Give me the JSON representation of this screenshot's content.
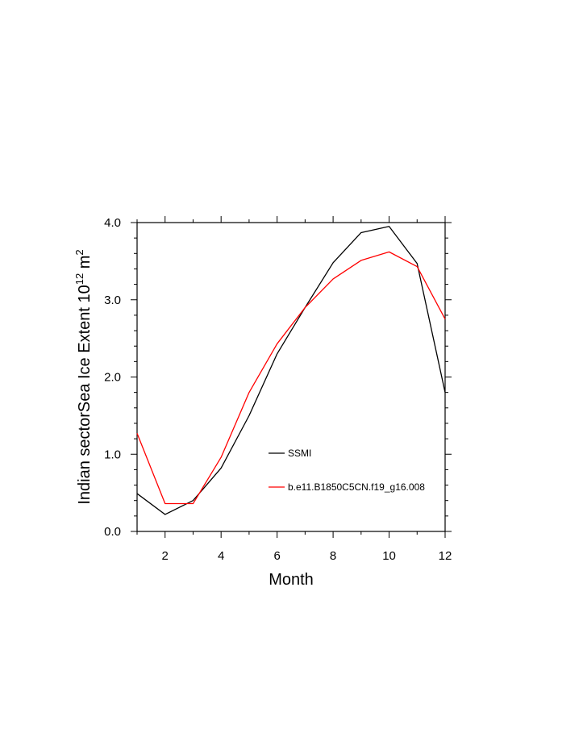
{
  "chart_data": {
    "type": "line",
    "xlabel": "Month",
    "ylabel_main": "Indian sectorSea Ice Extent 10",
    "ylabel_exp": "12",
    "ylabel_unit": " m",
    "ylabel_unit_exp": "2",
    "xlim": [
      1,
      12
    ],
    "ylim": [
      0,
      4
    ],
    "x_ticks": [
      2,
      4,
      6,
      8,
      10,
      12
    ],
    "x_tick_labels": [
      "2",
      "4",
      "6",
      "8",
      "10",
      "12"
    ],
    "y_ticks": [
      0,
      1,
      2,
      3,
      4
    ],
    "y_tick_labels": [
      "0.0",
      "1.0",
      "2.0",
      "3.0",
      "4.0"
    ],
    "x": [
      1,
      2,
      3,
      4,
      5,
      6,
      7,
      8,
      9,
      10,
      11,
      12
    ],
    "series": [
      {
        "name": "SSMI",
        "color": "#000000",
        "values": [
          0.49,
          0.22,
          0.4,
          0.82,
          1.5,
          2.3,
          2.9,
          3.48,
          3.87,
          3.95,
          3.47,
          1.8
        ]
      },
      {
        "name": "b.e11.B1850C5CN.f19_g16.008",
        "color": "#ff0000",
        "values": [
          1.27,
          0.36,
          0.36,
          0.96,
          1.8,
          2.43,
          2.9,
          3.27,
          3.51,
          3.62,
          3.43,
          2.75
        ]
      }
    ],
    "legend_position": "lower-right inside plot",
    "grid": false
  }
}
